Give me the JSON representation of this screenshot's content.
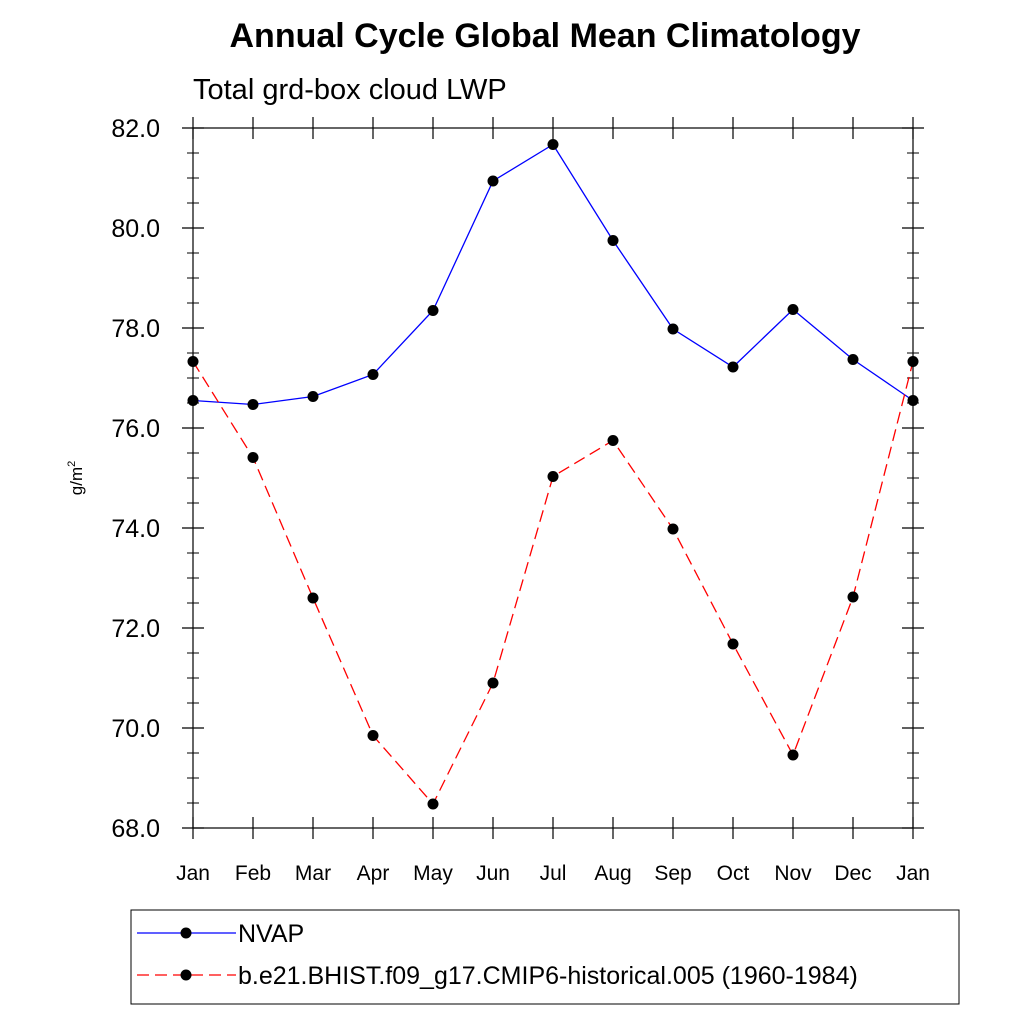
{
  "chart_data": {
    "type": "line",
    "title": "Annual Cycle Global Mean Climatology",
    "subtitle": "Total grd-box cloud LWP",
    "ylabel": "g/m",
    "ylabel_sup": "2",
    "xlabel": "",
    "categories": [
      "Jan",
      "Feb",
      "Mar",
      "Apr",
      "May",
      "Jun",
      "Jul",
      "Aug",
      "Sep",
      "Oct",
      "Nov",
      "Dec",
      "Jan"
    ],
    "ylim": [
      68.0,
      82.0
    ],
    "yticks": [
      68.0,
      70.0,
      72.0,
      74.0,
      76.0,
      78.0,
      80.0,
      82.0
    ],
    "ytick_labels": [
      "68.0",
      "70.0",
      "72.0",
      "74.0",
      "76.0",
      "78.0",
      "80.0",
      "82.0"
    ],
    "grid": false,
    "legend_position": "bottom",
    "series": [
      {
        "name": "NVAP",
        "color": "#0000ff",
        "style": "solid",
        "values": [
          76.55,
          76.47,
          76.63,
          77.07,
          78.35,
          80.94,
          81.67,
          79.75,
          77.98,
          77.22,
          78.37,
          77.37,
          76.55
        ]
      },
      {
        "name": "b.e21.BHIST.f09_g17.CMIP6-historical.005 (1960-1984)",
        "color": "#ff0000",
        "style": "dashed",
        "values": [
          77.33,
          75.41,
          72.6,
          69.85,
          68.48,
          70.9,
          75.03,
          75.75,
          73.98,
          71.68,
          69.46,
          72.62,
          77.33
        ]
      }
    ]
  }
}
